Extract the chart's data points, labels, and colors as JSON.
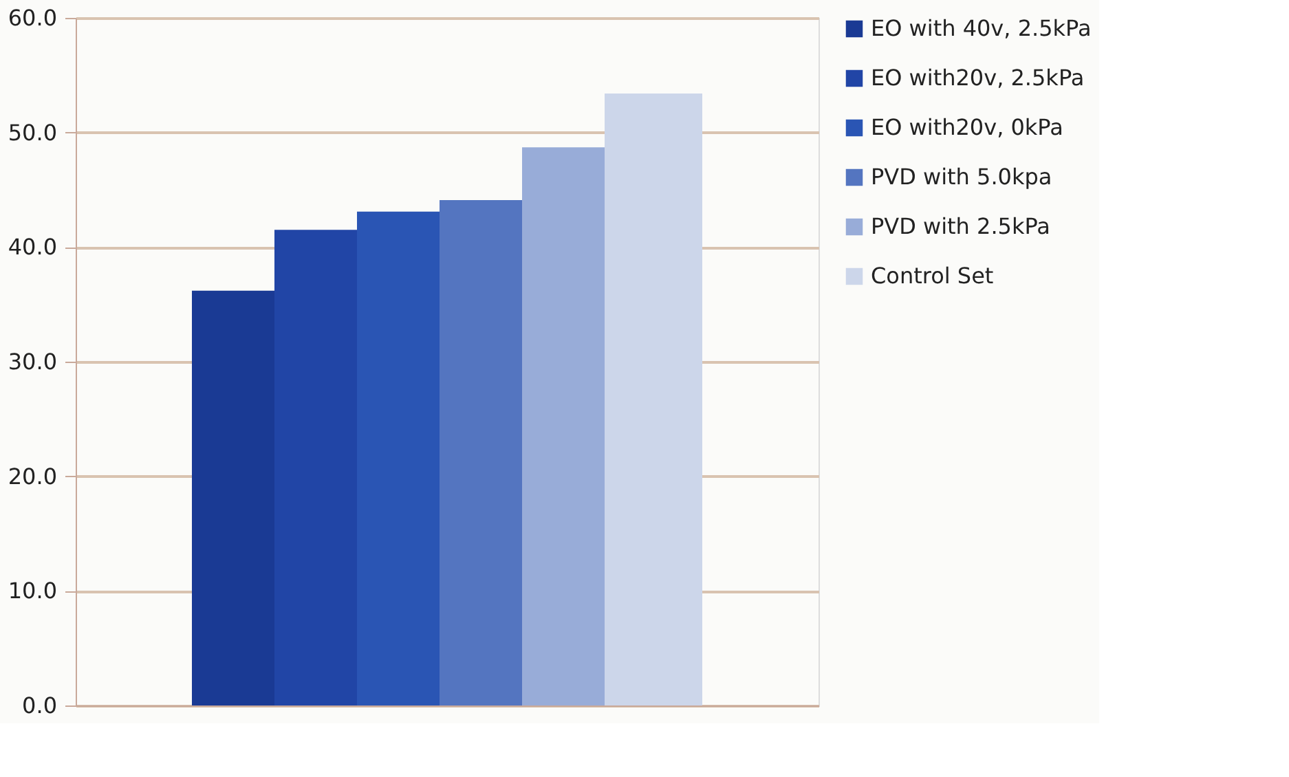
{
  "chart_data": {
    "type": "bar",
    "categories": [
      null
    ],
    "series": [
      {
        "name": "EO with 40v, 2.5kPa",
        "color": "#1a3a94",
        "values": [
          36.2
        ]
      },
      {
        "name": "EO with20v, 2.5kPa",
        "color": "#2145a6",
        "values": [
          41.5
        ]
      },
      {
        "name": "EO with20v, 0kPa",
        "color": "#2a55b4",
        "values": [
          43.1
        ]
      },
      {
        "name": "PVD with 5.0kpa",
        "color": "#5475c0",
        "values": [
          44.1
        ]
      },
      {
        "name": "PVD with 2.5kPa",
        "color": "#98acd8",
        "values": [
          48.7
        ]
      },
      {
        "name": "Control Set",
        "color": "#ccd6ea",
        "values": [
          53.4
        ]
      }
    ],
    "ylim": [
      0,
      60
    ],
    "yticks": [
      {
        "value": 0,
        "label": "0.0"
      },
      {
        "value": 10,
        "label": "10.0"
      },
      {
        "value": 20,
        "label": "20.0"
      },
      {
        "value": 30,
        "label": "30.0"
      },
      {
        "value": 40,
        "label": "40.0"
      },
      {
        "value": 50,
        "label": "50.0"
      },
      {
        "value": 60,
        "label": "60.0"
      }
    ],
    "grid": "y",
    "legend": "right"
  }
}
